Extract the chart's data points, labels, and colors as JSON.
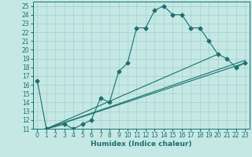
{
  "title": "",
  "xlabel": "Humidex (Indice chaleur)",
  "xlim": [
    -0.5,
    23.5
  ],
  "ylim": [
    11,
    25.5
  ],
  "xticks": [
    0,
    1,
    2,
    3,
    4,
    5,
    6,
    7,
    8,
    9,
    10,
    11,
    12,
    13,
    14,
    15,
    16,
    17,
    18,
    19,
    20,
    21,
    22,
    23
  ],
  "yticks": [
    11,
    12,
    13,
    14,
    15,
    16,
    17,
    18,
    19,
    20,
    21,
    22,
    23,
    24,
    25
  ],
  "bg_color": "#c5e8e5",
  "grid_color": "#a0d0cc",
  "line_color": "#1a7070",
  "series1_x": [
    0,
    1,
    3,
    4,
    5,
    6,
    7,
    8,
    9,
    10,
    11,
    12,
    13,
    14,
    15,
    16,
    17,
    18,
    19,
    20,
    21,
    22,
    23
  ],
  "series1_y": [
    16.5,
    11,
    11.5,
    11,
    11.5,
    12,
    14.5,
    14,
    17.5,
    18.5,
    22.5,
    22.5,
    24.5,
    25,
    24,
    24,
    22.5,
    22.5,
    21,
    19.5,
    19,
    18,
    18.5
  ],
  "series2_x": [
    1,
    23
  ],
  "series2_y": [
    11,
    18.5
  ],
  "series3_x": [
    1,
    20
  ],
  "series3_y": [
    11,
    19.5
  ],
  "series4_x": [
    1,
    23
  ],
  "series4_y": [
    11,
    18.8
  ],
  "markersize": 2.5,
  "linewidth": 0.8,
  "tick_fontsize": 5.5,
  "xlabel_fontsize": 6.5
}
